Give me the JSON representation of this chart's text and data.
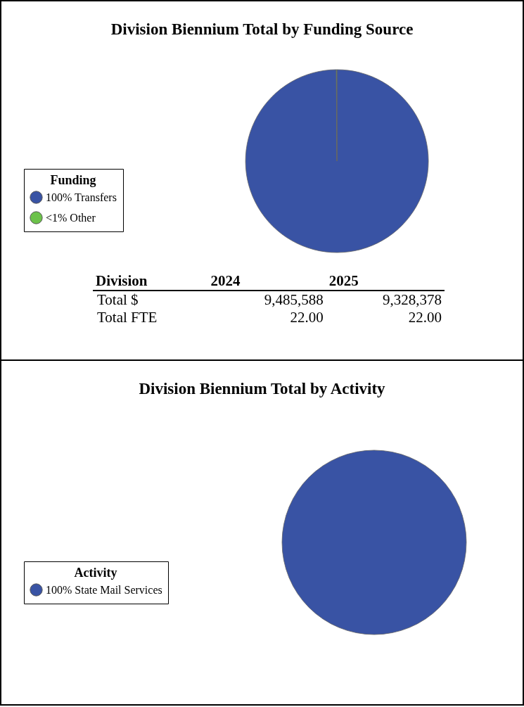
{
  "chart_data": [
    {
      "type": "pie",
      "title": "Division Biennium Total by Funding Source",
      "legend_title": "Funding",
      "legend": "left",
      "categories": [
        "100% Transfers",
        "<1% Other"
      ],
      "values": [
        99.9,
        0.1
      ],
      "colors": [
        "#3953a4",
        "#6cc24a"
      ],
      "annotations": [
        "Division",
        "2024",
        "2025",
        "Total $",
        "9,485,588",
        "9,328,378",
        "Total FTE",
        "22.00",
        "22.00"
      ]
    },
    {
      "type": "pie",
      "title": "Division Biennium Total by Activity",
      "legend_title": "Activity",
      "legend": "left",
      "categories": [
        "100% State Mail Services"
      ],
      "values": [
        100
      ],
      "colors": [
        "#3953a4"
      ]
    }
  ]
}
